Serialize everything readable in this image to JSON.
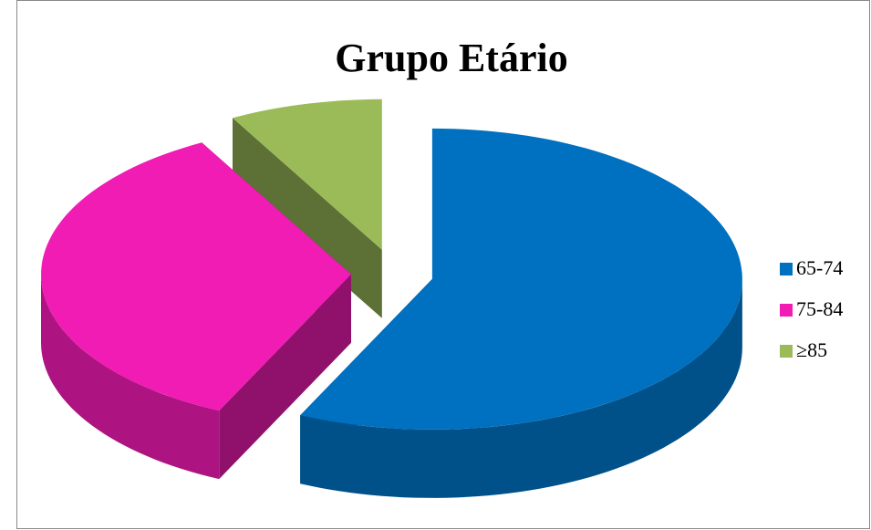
{
  "chart_data": {
    "type": "pie",
    "title": "Grupo Etário",
    "categories": [
      "65-74",
      "75-84",
      "≥85"
    ],
    "values": [
      57,
      35,
      8
    ],
    "colors": [
      "#0070c0",
      "#f01cb4",
      "#9bbb59"
    ],
    "legend": "right",
    "explode": true
  }
}
